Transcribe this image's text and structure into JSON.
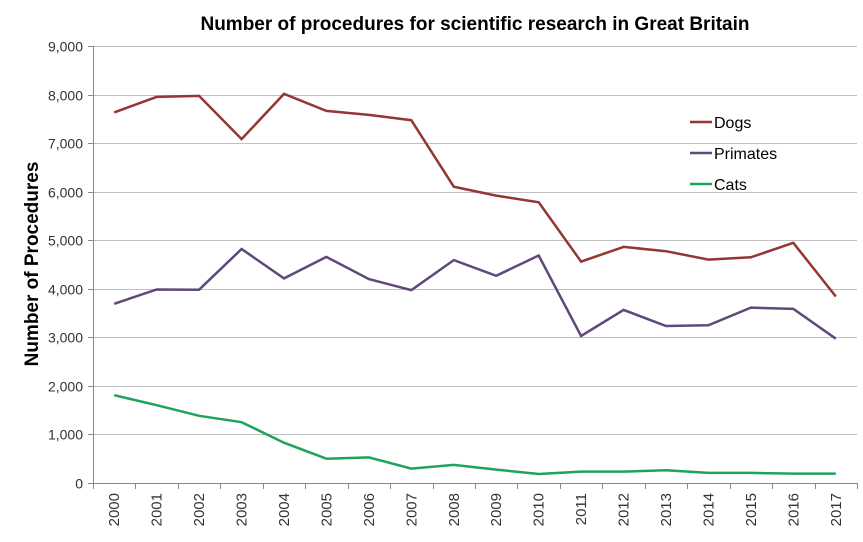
{
  "chart_data": {
    "type": "line",
    "title": "Number of procedures for scientific research in Great Britain",
    "xlabel": "",
    "ylabel": "Number of Procedures",
    "categories": [
      "2000",
      "2001",
      "2002",
      "2003",
      "2004",
      "2005",
      "2006",
      "2007",
      "2008",
      "2009",
      "2010",
      "2011",
      "2012",
      "2013",
      "2014",
      "2015",
      "2016",
      "2017"
    ],
    "ylim": [
      0,
      9000
    ],
    "yticks": [
      0,
      1000,
      2000,
      3000,
      4000,
      5000,
      6000,
      7000,
      8000,
      9000
    ],
    "ytick_labels": [
      "0",
      "1,000",
      "2,000",
      "3,000",
      "4,000",
      "5,000",
      "6,000",
      "7,000",
      "8,000",
      "9,000"
    ],
    "grid": true,
    "legend_position": "top-right",
    "series": [
      {
        "name": "Dogs",
        "color": "#943634",
        "values": [
          7633,
          7952,
          7973,
          7083,
          8014,
          7664,
          7582,
          7472,
          6103,
          5918,
          5781,
          4559,
          4863,
          4773,
          4600,
          4648,
          4946,
          3840
        ]
      },
      {
        "name": "Primates",
        "color": "#5f497a",
        "values": [
          3690,
          3986,
          3980,
          4820,
          4214,
          4656,
          4200,
          3973,
          4590,
          4268,
          4686,
          3027,
          3565,
          3234,
          3248,
          3613,
          3586,
          2971
        ]
      },
      {
        "name": "Cats",
        "color": "#1fa35a",
        "values": [
          1808,
          1603,
          1383,
          1253,
          830,
          500,
          527,
          297,
          372,
          277,
          186,
          235,
          235,
          263,
          207,
          207,
          193,
          193
        ]
      }
    ]
  }
}
